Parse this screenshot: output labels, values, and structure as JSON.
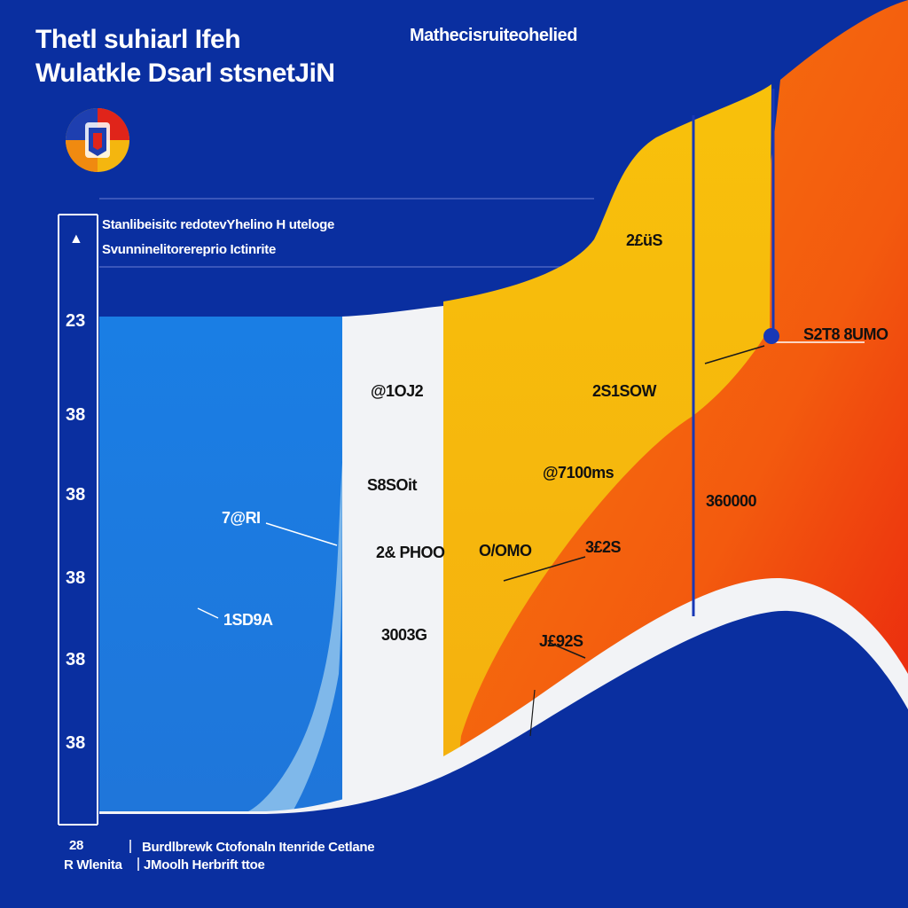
{
  "colors": {
    "background": "#0a2fa0",
    "series_blue": "#1d7be0",
    "series_light_blue": "#7fb8ea",
    "series_white": "#f2f3f6",
    "series_yellow": "#f6b80c",
    "series_orange": "#f3600d",
    "series_red": "#ea1c12",
    "gridline": "#4a64c2"
  },
  "header": {
    "title_line1": "Thetl suhiarl Ifeh",
    "title_line2": "Wulatkle Dsarl stsnetJiN",
    "top_right": "Mathecisruiteohelied",
    "emblem_icon": "emblem-icon"
  },
  "chart_data": {
    "type": "area",
    "title": "Thetl suhiarl Ifeh Wulatkle Dsarl stsnetJiN",
    "subtitle_line1": "Stanlibeisitc redotevYhelino  H  uteloge",
    "subtitle_line2": "Svunninelitorereprio Ictinrite",
    "xlabel_line1": "Burdlbrewk Ctofonaln  Itenride Cetlane",
    "xlabel_line2": "JMoolh Herbrift ttoe",
    "y_ticks": [
      "23",
      "38",
      "38",
      "38",
      "38",
      "38"
    ],
    "y_top_marker": "▲",
    "x_ticks": [
      "28",
      "R Wlenita"
    ],
    "x_range": [
      0,
      10
    ],
    "y_range": [
      0,
      10
    ],
    "grid": true,
    "series": [
      {
        "name": "blue",
        "color": "#1d7be0",
        "x": [
          0,
          5
        ],
        "y": [
          0,
          10
        ]
      },
      {
        "name": "light-blue",
        "color": "#7fb8ea",
        "x": [
          0,
          5
        ],
        "y": [
          0,
          10
        ]
      },
      {
        "name": "white",
        "color": "#f2f3f6",
        "x": [
          0,
          10
        ],
        "y": [
          0,
          10
        ]
      },
      {
        "name": "yellow",
        "color": "#f6b80c",
        "x": [
          0,
          10
        ],
        "y": [
          0,
          10
        ]
      },
      {
        "name": "orange",
        "color": "#f3600d",
        "x": [
          0,
          10
        ],
        "y": [
          0,
          10
        ]
      }
    ],
    "data_labels": [
      {
        "text": "2£üS",
        "series": "yellow"
      },
      {
        "text": "@1OJ2",
        "series": "white"
      },
      {
        "text": "2S1SOW",
        "series": "yellow"
      },
      {
        "text": "S2T8 8UMO",
        "series": "orange"
      },
      {
        "text": "S8SOit",
        "series": "white"
      },
      {
        "text": "@7100ms",
        "series": "yellow"
      },
      {
        "text": "360000",
        "series": "orange"
      },
      {
        "text": "7@RI",
        "series": "blue"
      },
      {
        "text": "2& PHOO",
        "series": "white"
      },
      {
        "text": "O/OMO",
        "series": "yellow"
      },
      {
        "text": "3£2S",
        "series": "orange"
      },
      {
        "text": "1SD9A",
        "series": "blue"
      },
      {
        "text": "3003G",
        "series": "white"
      },
      {
        "text": "J£92S",
        "series": "orange"
      }
    ]
  }
}
